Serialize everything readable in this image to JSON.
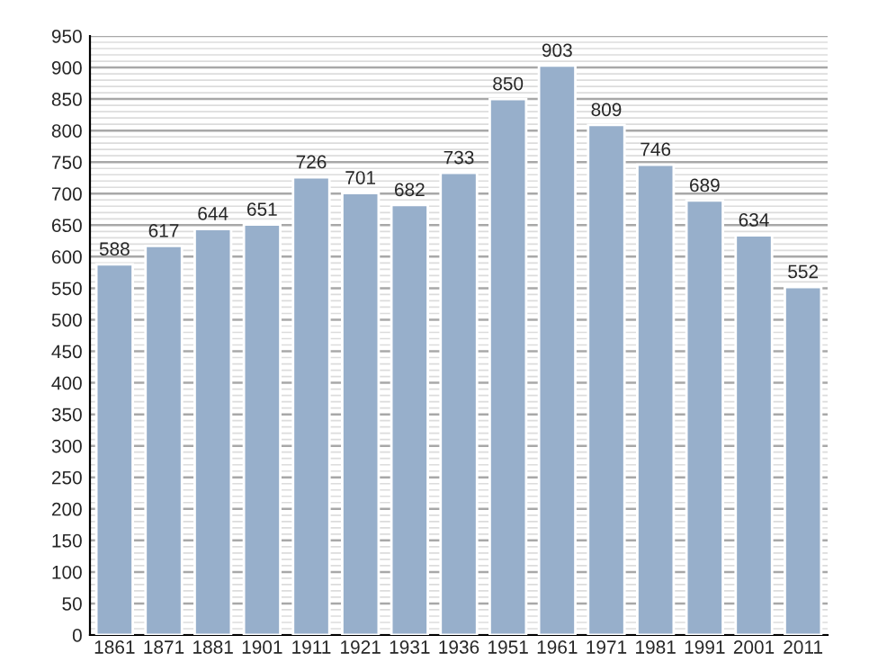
{
  "chart_data": {
    "type": "bar",
    "categories": [
      "1861",
      "1871",
      "1881",
      "1901",
      "1911",
      "1921",
      "1931",
      "1936",
      "1951",
      "1961",
      "1971",
      "1981",
      "1991",
      "2001",
      "2011"
    ],
    "values": [
      588,
      617,
      644,
      651,
      726,
      701,
      682,
      733,
      850,
      903,
      809,
      746,
      689,
      634,
      552
    ],
    "color": "#97afcb",
    "ylim": [
      0,
      950
    ],
    "yticks": [
      0,
      50,
      100,
      150,
      200,
      250,
      300,
      350,
      400,
      450,
      500,
      550,
      600,
      650,
      700,
      750,
      800,
      850,
      900,
      950
    ],
    "grid": "y",
    "data_labels": true
  }
}
